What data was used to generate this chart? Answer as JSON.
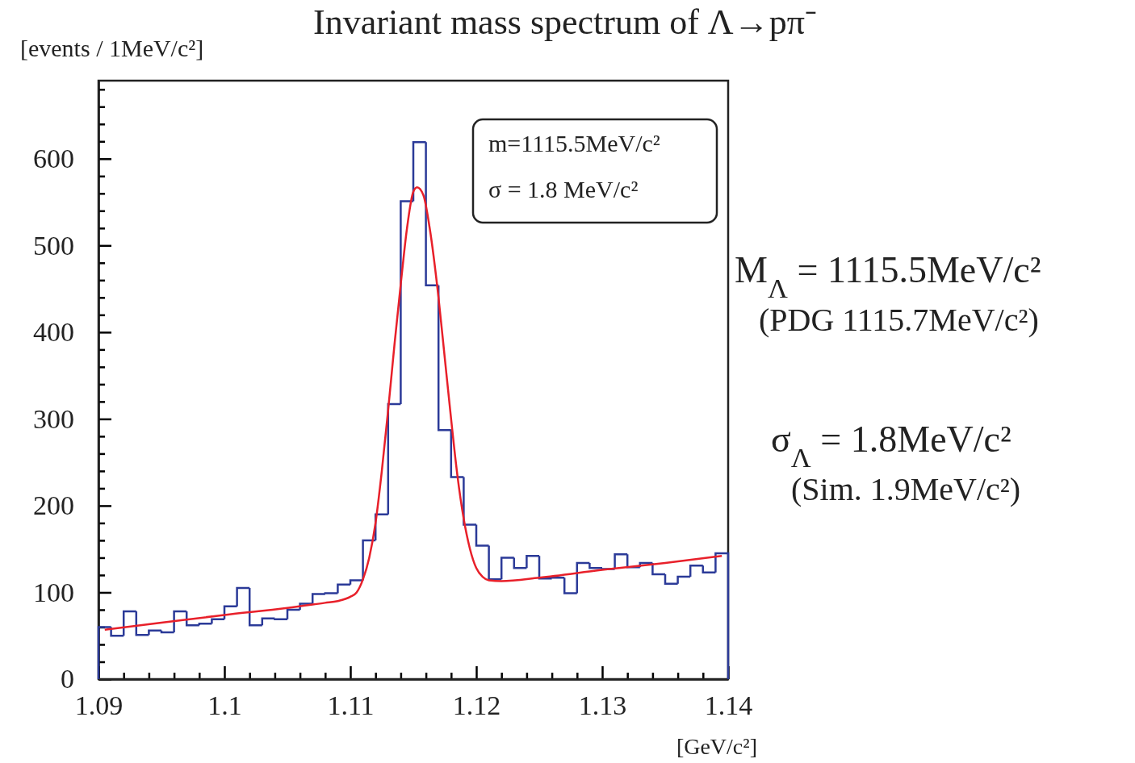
{
  "chart_data": {
    "type": "histogram",
    "title": "Invariant mass spectrum of Λ→pπ⁻",
    "ylabel": "[events / 1MeV/c²]",
    "xlabel": "[GeV/c²]",
    "xlim": [
      1.09,
      1.14
    ],
    "ylim": [
      0,
      690
    ],
    "xticks": [
      1.09,
      {
        "value": 1.092,
        "label": null
      },
      {
        "value": 1.094,
        "label": null
      },
      {
        "value": 1.096,
        "label": null
      },
      {
        "value": 1.098,
        "label": null
      },
      {
        "value": 1.1,
        "label": "1.1"
      },
      {
        "value": 1.102,
        "label": null
      },
      {
        "value": 1.104,
        "label": null
      },
      {
        "value": 1.106,
        "label": null
      },
      {
        "value": 1.108,
        "label": null
      },
      1.11,
      {
        "value": 1.112,
        "label": null
      },
      {
        "value": 1.114,
        "label": null
      },
      {
        "value": 1.116,
        "label": null
      },
      {
        "value": 1.118,
        "label": null
      },
      1.12,
      {
        "value": 1.122,
        "label": null
      },
      {
        "value": 1.124,
        "label": null
      },
      {
        "value": 1.126,
        "label": null
      },
      {
        "value": 1.128,
        "label": null
      },
      1.13,
      {
        "value": 1.132,
        "label": null
      },
      {
        "value": 1.134,
        "label": null
      },
      {
        "value": 1.136,
        "label": null
      },
      {
        "value": 1.138,
        "label": null
      },
      1.14
    ],
    "yticks": [
      0,
      {
        "value": 20,
        "label": null
      },
      {
        "value": 40,
        "label": null
      },
      {
        "value": 60,
        "label": null
      },
      {
        "value": 80,
        "label": null
      },
      100,
      {
        "value": 120,
        "label": null
      },
      {
        "value": 140,
        "label": null
      },
      {
        "value": 160,
        "label": null
      },
      {
        "value": 180,
        "label": null
      },
      200,
      {
        "value": 220,
        "label": null
      },
      {
        "value": 240,
        "label": null
      },
      {
        "value": 260,
        "label": null
      },
      {
        "value": 280,
        "label": null
      },
      300,
      {
        "value": 320,
        "label": null
      },
      {
        "value": 340,
        "label": null
      },
      {
        "value": 360,
        "label": null
      },
      {
        "value": 380,
        "label": null
      },
      400,
      {
        "value": 420,
        "label": null
      },
      {
        "value": 440,
        "label": null
      },
      {
        "value": 460,
        "label": null
      },
      {
        "value": 480,
        "label": null
      },
      500,
      {
        "value": 520,
        "label": null
      },
      {
        "value": 540,
        "label": null
      },
      {
        "value": 560,
        "label": null
      },
      {
        "value": 580,
        "label": null
      },
      600,
      {
        "value": 620,
        "label": null
      },
      {
        "value": 640,
        "label": null
      },
      {
        "value": 660,
        "label": null
      },
      {
        "value": 680,
        "label": null
      }
    ],
    "series": [
      {
        "color": "#2b3a98",
        "bins": [
          1.09,
          1.091,
          1.092,
          1.093,
          1.094,
          1.095,
          1.096,
          1.097,
          1.098,
          1.099,
          1.1,
          1.101,
          1.102,
          1.103,
          1.104,
          1.105,
          1.106,
          1.107,
          1.108,
          1.109,
          1.11,
          1.111,
          1.112,
          1.113,
          1.114,
          1.115,
          1.116,
          1.117,
          1.118,
          1.119,
          1.12,
          1.121,
          1.122,
          1.123,
          1.124,
          1.125,
          1.126,
          1.127,
          1.128,
          1.129,
          1.13,
          1.131,
          1.132,
          1.133,
          1.134,
          1.135,
          1.136,
          1.137,
          1.138,
          1.139,
          1.14
        ],
        "values": [
          60,
          50,
          78,
          51,
          56,
          54,
          78,
          62,
          64,
          69,
          84,
          105,
          62,
          70,
          69,
          80,
          87,
          98,
          99,
          109,
          114,
          160,
          190,
          317,
          551,
          619,
          454,
          287,
          233,
          178,
          154,
          115,
          140,
          128,
          142,
          116,
          117,
          99,
          134,
          128,
          127,
          144,
          129,
          134,
          121,
          110,
          118,
          131,
          123,
          145
        ]
      },
      {
        "type": "line",
        "color": "#e8202a",
        "x": [
          1.0905,
          1.095,
          1.1,
          1.105,
          1.108,
          1.109,
          1.11,
          1.1105,
          1.111,
          1.1115,
          1.112,
          1.1125,
          1.113,
          1.1135,
          1.114,
          1.1145,
          1.115,
          1.1153,
          1.1158,
          1.1163,
          1.117,
          1.1175,
          1.118,
          1.1185,
          1.119,
          1.1195,
          1.12,
          1.1205,
          1.121,
          1.122,
          1.125,
          1.13,
          1.135,
          1.1395
        ],
        "values": [
          57,
          65,
          74,
          82,
          88,
          90,
          95,
          100,
          115,
          140,
          180,
          240,
          310,
          385,
          455,
          520,
          562,
          567,
          558,
          520,
          440,
          370,
          300,
          235,
          185,
          150,
          128,
          118,
          114,
          113,
          117,
          126,
          134,
          142
        ]
      }
    ],
    "annotations": [
      "m=1115.5MeV/c²",
      "σ =   1.8  MeV/c²",
      "M$_{Λ}$ = 1115.5MeV/c²",
      "(PDG 1115.7MeV/c²)",
      "σ$_{Λ}$ = 1.8MeV/c²",
      "(Sim. 1.9MeV/c²)"
    ]
  }
}
